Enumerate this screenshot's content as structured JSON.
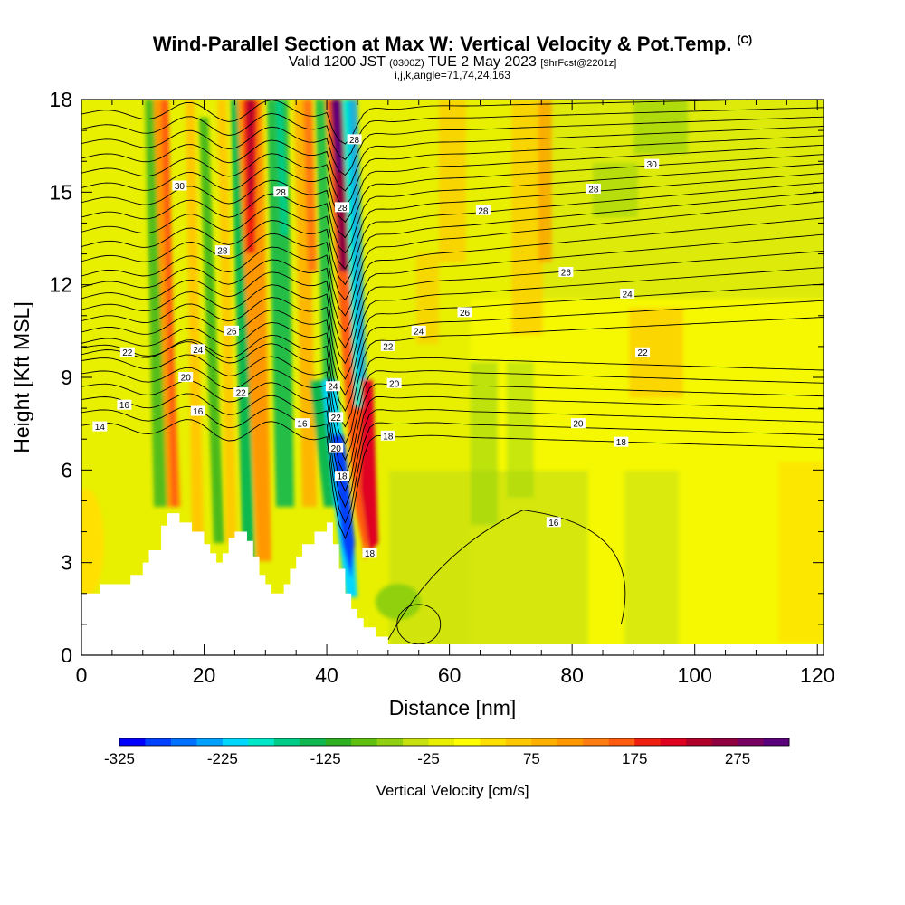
{
  "header": {
    "title": "Wind-Parallel Section at Max W: Vertical Velocity & Pot.Temp.",
    "title_mark": "(C)",
    "valid_prefix": "Valid 1200 JST",
    "valid_zulu": "(0300Z)",
    "valid_date": "TUE 2 May 2023",
    "forecast": "[9hrFcst@2201z]",
    "subtitle": "i,j,k,angle=71,74,24,163"
  },
  "chart_data": {
    "type": "heatmap",
    "xlabel": "Distance [nm]",
    "ylabel": "Height [Kft MSL]",
    "xlim": [
      0,
      121
    ],
    "ylim": [
      0,
      18
    ],
    "x_ticks": [
      0,
      20,
      40,
      60,
      80,
      100,
      120
    ],
    "y_ticks": [
      0,
      3,
      6,
      9,
      12,
      15,
      18
    ],
    "colorbar": {
      "label": "Vertical Velocity [cm/s]",
      "min": -325,
      "max": 325,
      "tick_labels": [
        -325,
        -225,
        -125,
        -25,
        75,
        175,
        275
      ],
      "colors": [
        "#0000ff",
        "#0040ff",
        "#0070ff",
        "#00a0ff",
        "#00d8ff",
        "#00e8c8",
        "#00cc88",
        "#10b850",
        "#30b020",
        "#60c010",
        "#90d010",
        "#c8e010",
        "#e8f000",
        "#ffff00",
        "#ffe000",
        "#ffc800",
        "#ffb000",
        "#ff9800",
        "#ff7c10",
        "#ff5c10",
        "#f02010",
        "#e00020",
        "#b0002a",
        "#900040",
        "#780060",
        "#5a007a"
      ]
    },
    "terrain": [
      [
        0,
        2
      ],
      [
        3,
        2
      ],
      [
        3,
        2.3
      ],
      [
        8,
        2.3
      ],
      [
        8,
        2.6
      ],
      [
        10,
        2.6
      ],
      [
        10,
        3.0
      ],
      [
        11,
        3.0
      ],
      [
        11,
        3.4
      ],
      [
        13,
        3.4
      ],
      [
        13,
        4.2
      ],
      [
        14,
        4.2
      ],
      [
        14,
        4.6
      ],
      [
        16,
        4.6
      ],
      [
        16,
        4.3
      ],
      [
        18,
        4.3
      ],
      [
        18,
        4.0
      ],
      [
        20,
        4.0
      ],
      [
        20,
        3.6
      ],
      [
        21,
        3.6
      ],
      [
        21,
        3.3
      ],
      [
        22,
        3.3
      ],
      [
        22,
        3.0
      ],
      [
        23,
        3.0
      ],
      [
        23,
        3.3
      ],
      [
        24,
        3.3
      ],
      [
        24,
        3.8
      ],
      [
        25,
        3.8
      ],
      [
        25,
        4.0
      ],
      [
        27,
        4.0
      ],
      [
        27,
        3.7
      ],
      [
        28,
        3.7
      ],
      [
        28,
        3.2
      ],
      [
        29,
        3.2
      ],
      [
        29,
        2.6
      ],
      [
        30,
        2.6
      ],
      [
        30,
        2.3
      ],
      [
        31,
        2.3
      ],
      [
        31,
        2.0
      ],
      [
        33,
        2.0
      ],
      [
        33,
        2.3
      ],
      [
        34,
        2.3
      ],
      [
        34,
        2.8
      ],
      [
        35,
        2.8
      ],
      [
        35,
        3.2
      ],
      [
        36,
        3.2
      ],
      [
        36,
        3.6
      ],
      [
        38,
        3.6
      ],
      [
        38,
        4.0
      ],
      [
        40,
        4.0
      ],
      [
        40,
        4.3
      ],
      [
        41,
        4.3
      ],
      [
        41,
        3.6
      ],
      [
        42,
        3.6
      ],
      [
        42,
        2.8
      ],
      [
        43,
        2.8
      ],
      [
        43,
        2.0
      ],
      [
        44,
        2.0
      ],
      [
        44,
        1.5
      ],
      [
        45,
        1.5
      ],
      [
        45,
        1.2
      ],
      [
        46,
        1.2
      ],
      [
        46,
        0.9
      ],
      [
        48,
        0.9
      ],
      [
        48,
        0.6
      ],
      [
        50,
        0.6
      ],
      [
        50,
        0.35
      ],
      [
        121,
        0.35
      ]
    ],
    "theta_contour_labels": [
      {
        "x": 3,
        "y": 7.4,
        "v": "14"
      },
      {
        "x": 7,
        "y": 8.1,
        "v": "16"
      },
      {
        "x": 19,
        "y": 7.9,
        "v": "16"
      },
      {
        "x": 36,
        "y": 7.5,
        "v": "16"
      },
      {
        "x": 42.5,
        "y": 5.8,
        "v": "18"
      },
      {
        "x": 50,
        "y": 7.1,
        "v": "18"
      },
      {
        "x": 47,
        "y": 3.3,
        "v": "18"
      },
      {
        "x": 77,
        "y": 4.3,
        "v": "16"
      },
      {
        "x": 88,
        "y": 6.9,
        "v": "18"
      },
      {
        "x": 81,
        "y": 7.5,
        "v": "20"
      },
      {
        "x": 41.5,
        "y": 6.7,
        "v": "20"
      },
      {
        "x": 51,
        "y": 8.8,
        "v": "20"
      },
      {
        "x": 17,
        "y": 9.0,
        "v": "20"
      },
      {
        "x": 26,
        "y": 8.5,
        "v": "22"
      },
      {
        "x": 41.5,
        "y": 7.7,
        "v": "22"
      },
      {
        "x": 7.5,
        "y": 9.8,
        "v": "22"
      },
      {
        "x": 50,
        "y": 10.0,
        "v": "22"
      },
      {
        "x": 91.5,
        "y": 9.8,
        "v": "22"
      },
      {
        "x": 19,
        "y": 9.9,
        "v": "24"
      },
      {
        "x": 41,
        "y": 8.7,
        "v": "24"
      },
      {
        "x": 55,
        "y": 10.5,
        "v": "24"
      },
      {
        "x": 89,
        "y": 11.7,
        "v": "24"
      },
      {
        "x": 24.5,
        "y": 10.5,
        "v": "26"
      },
      {
        "x": 62.5,
        "y": 11.1,
        "v": "26"
      },
      {
        "x": 79,
        "y": 12.4,
        "v": "26"
      },
      {
        "x": 23,
        "y": 13.1,
        "v": "28"
      },
      {
        "x": 32.5,
        "y": 15.0,
        "v": "28"
      },
      {
        "x": 65.5,
        "y": 14.4,
        "v": "28"
      },
      {
        "x": 83.5,
        "y": 15.1,
        "v": "28"
      },
      {
        "x": 42.5,
        "y": 14.5,
        "v": "28"
      },
      {
        "x": 44.5,
        "y": 16.7,
        "v": "28"
      },
      {
        "x": 16,
        "y": 15.2,
        "v": "30"
      },
      {
        "x": 93,
        "y": 15.9,
        "v": "30"
      }
    ]
  }
}
